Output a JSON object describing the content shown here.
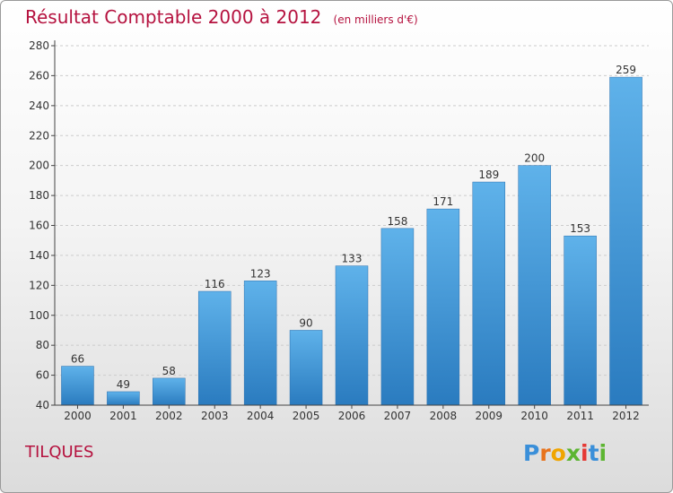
{
  "header": {
    "title": "Résultat Comptable 2000 à 2012",
    "subtitle": "(en milliers d'€)"
  },
  "footer": {
    "place": "TILQUES",
    "logo_text": "Proxiti"
  },
  "colors": {
    "accent": "#b5123f",
    "bar_top": "#5fb2ea",
    "bar_bottom": "#2a7bbf"
  },
  "chart_data": {
    "type": "bar",
    "title": "Résultat Comptable 2000 à 2012",
    "xlabel": "",
    "ylabel": "",
    "categories": [
      "2000",
      "2001",
      "2002",
      "2003",
      "2004",
      "2005",
      "2006",
      "2007",
      "2008",
      "2009",
      "2010",
      "2011",
      "2012"
    ],
    "values": [
      66,
      49,
      58,
      116,
      123,
      90,
      133,
      158,
      171,
      189,
      200,
      153,
      259
    ],
    "ylim": [
      40,
      280
    ],
    "yticks": [
      40,
      60,
      80,
      100,
      120,
      140,
      160,
      180,
      200,
      220,
      240,
      260,
      280
    ],
    "grid": true,
    "legend": "none"
  }
}
